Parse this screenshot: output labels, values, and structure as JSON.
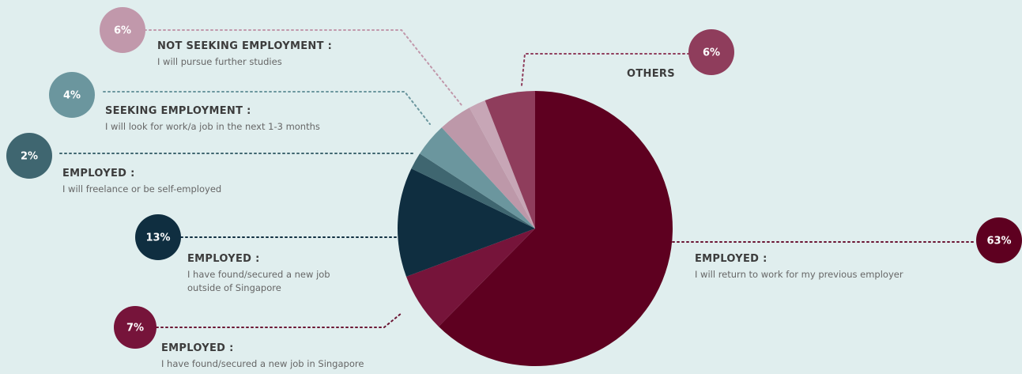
{
  "chart_data": {
    "type": "pie",
    "slices": [
      {
        "value": 63,
        "percent_label": "63%",
        "title": "EMPLOYED :",
        "desc": "I will return to work for my previous employer",
        "color": "#5e0020"
      },
      {
        "value": 7,
        "percent_label": "7%",
        "title": "EMPLOYED :",
        "desc": "I have found/secured a new job in Singapore",
        "color": "#76143a"
      },
      {
        "value": 13,
        "percent_label": "13%",
        "title": "EMPLOYED :",
        "desc": "I have found/secured a new job outside of Singapore",
        "color": "#0f2e40"
      },
      {
        "value": 2,
        "percent_label": "2%",
        "title": "EMPLOYED :",
        "desc": "I will freelance or be self-employed",
        "color": "#3f6670"
      },
      {
        "value": 4,
        "percent_label": "4%",
        "title": "SEEKING EMPLOYMENT :",
        "desc": "I will look for work/a job in the next 1-3 months",
        "color": "#6b969e"
      },
      {
        "value": 4,
        "percent_label": "",
        "title": "",
        "desc": "",
        "color": "#bd98a9"
      },
      {
        "value": 2,
        "percent_label": "",
        "title": "",
        "desc": "",
        "color": "#c7a6b6"
      },
      {
        "value": 6,
        "percent_label": "6%",
        "title": "OTHERS",
        "desc": "",
        "color": "#8f3d5c"
      }
    ],
    "callouts": [
      {
        "percent_label": "6%",
        "title": "NOT SEEKING EMPLOYMENT :",
        "desc": "I will pursue further studies",
        "color": "#c198ab"
      }
    ]
  }
}
